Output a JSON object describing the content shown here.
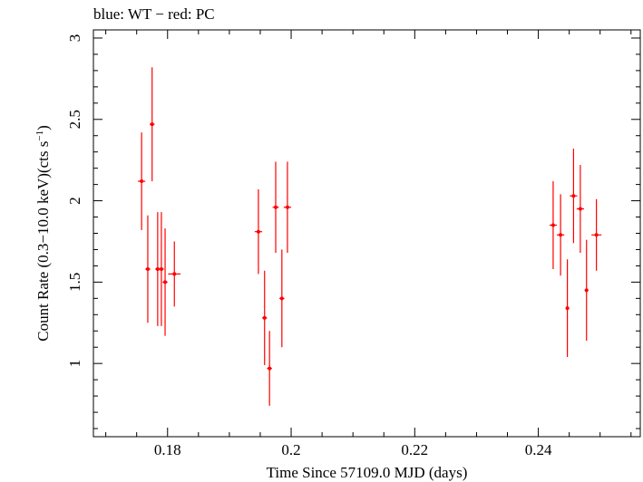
{
  "chart_data": {
    "type": "scatter",
    "title": "blue: WT − red: PC",
    "xlabel": "Time Since 57109.0 MJD (days)",
    "ylabel_main": "Count Rate (0.3−10.0 keV)(cts s",
    "ylabel_sup": "−1",
    "ylabel_close": ")",
    "xlim": [
      0.168,
      0.2565
    ],
    "ylim": [
      0.55,
      3.05
    ],
    "x_ticks": [
      0.18,
      0.2,
      0.22,
      0.24
    ],
    "x_tick_labels": [
      "0.18",
      "0.2",
      "0.22",
      "0.24"
    ],
    "y_ticks": [
      1,
      1.5,
      2,
      2.5,
      3
    ],
    "y_tick_labels": [
      "1",
      "1.5",
      "2",
      "2.5",
      "3"
    ],
    "grid": false,
    "series": [
      {
        "color": "#ff0000",
        "points": [
          {
            "x": 0.1758,
            "y": 2.12,
            "xerr": 0.0006,
            "yerr": 0.3
          },
          {
            "x": 0.1768,
            "y": 1.58,
            "xerr": 0.0004,
            "yerr": 0.33
          },
          {
            "x": 0.1775,
            "y": 2.47,
            "xerr": 0.0004,
            "yerr": 0.35
          },
          {
            "x": 0.1784,
            "y": 1.58,
            "xerr": 0.0004,
            "yerr": 0.35
          },
          {
            "x": 0.179,
            "y": 1.58,
            "xerr": 0.0004,
            "yerr": 0.35
          },
          {
            "x": 0.1796,
            "y": 1.5,
            "xerr": 0.0004,
            "yerr": 0.33
          },
          {
            "x": 0.1811,
            "y": 1.55,
            "xerr": 0.001,
            "yerr": 0.2
          },
          {
            "x": 0.1947,
            "y": 1.81,
            "xerr": 0.0006,
            "yerr": 0.26
          },
          {
            "x": 0.1957,
            "y": 1.28,
            "xerr": 0.0004,
            "yerr": 0.29
          },
          {
            "x": 0.1965,
            "y": 0.97,
            "xerr": 0.0004,
            "yerr": 0.23
          },
          {
            "x": 0.1975,
            "y": 1.96,
            "xerr": 0.0005,
            "yerr": 0.28
          },
          {
            "x": 0.1985,
            "y": 1.4,
            "xerr": 0.0004,
            "yerr": 0.3
          },
          {
            "x": 0.1994,
            "y": 1.96,
            "xerr": 0.0006,
            "yerr": 0.28
          },
          {
            "x": 0.2424,
            "y": 1.85,
            "xerr": 0.0006,
            "yerr": 0.27
          },
          {
            "x": 0.2436,
            "y": 1.79,
            "xerr": 0.0006,
            "yerr": 0.25
          },
          {
            "x": 0.2447,
            "y": 1.34,
            "xerr": 0.0003,
            "yerr": 0.3
          },
          {
            "x": 0.2457,
            "y": 2.03,
            "xerr": 0.0006,
            "yerr": 0.29
          },
          {
            "x": 0.2468,
            "y": 1.95,
            "xerr": 0.0006,
            "yerr": 0.27
          },
          {
            "x": 0.2478,
            "y": 1.45,
            "xerr": 0.0003,
            "yerr": 0.31
          },
          {
            "x": 0.2494,
            "y": 1.79,
            "xerr": 0.0008,
            "yerr": 0.22
          }
        ]
      }
    ]
  }
}
